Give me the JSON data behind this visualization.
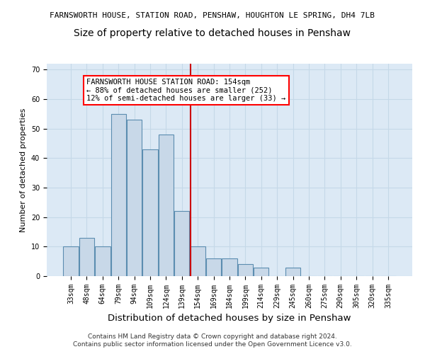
{
  "title_line1": "FARNSWORTH HOUSE, STATION ROAD, PENSHAW, HOUGHTON LE SPRING, DH4 7LB",
  "title_line2": "Size of property relative to detached houses in Penshaw",
  "xlabel": "Distribution of detached houses by size in Penshaw",
  "ylabel": "Number of detached properties",
  "footnote1": "Contains HM Land Registry data © Crown copyright and database right 2024.",
  "footnote2": "Contains public sector information licensed under the Open Government Licence v3.0.",
  "categories": [
    "33sqm",
    "48sqm",
    "64sqm",
    "79sqm",
    "94sqm",
    "109sqm",
    "124sqm",
    "139sqm",
    "154sqm",
    "169sqm",
    "184sqm",
    "199sqm",
    "214sqm",
    "229sqm",
    "245sqm",
    "260sqm",
    "275sqm",
    "290sqm",
    "305sqm",
    "320sqm",
    "335sqm"
  ],
  "values": [
    10,
    13,
    10,
    55,
    53,
    43,
    48,
    22,
    10,
    6,
    6,
    4,
    3,
    0,
    3,
    0,
    0,
    0,
    0,
    0,
    0
  ],
  "bar_color": "#c8d8e8",
  "bar_edge_color": "#5b8db0",
  "vline_color": "#cc0000",
  "annotation_box_text": "FARNSWORTH HOUSE STATION ROAD: 154sqm\n← 88% of detached houses are smaller (252)\n12% of semi-detached houses are larger (33) →",
  "ylim": [
    0,
    72
  ],
  "yticks": [
    0,
    10,
    20,
    30,
    40,
    50,
    60,
    70
  ],
  "grid_color": "#c5d8e8",
  "bg_color": "#dce9f5",
  "title1_fontsize": 8.0,
  "title2_fontsize": 10.0,
  "xlabel_fontsize": 9.5,
  "ylabel_fontsize": 8.0,
  "tick_fontsize": 7.0,
  "footnote_fontsize": 6.5,
  "ann_fontsize": 7.5
}
